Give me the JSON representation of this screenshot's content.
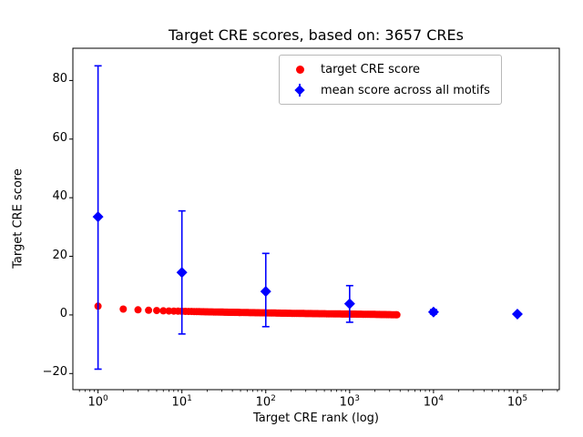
{
  "chart_data": {
    "type": "scatter",
    "title": "Target CRE scores, based on: 3657 CREs",
    "xlabel": "Target CRE rank (log)",
    "ylabel": "Target CRE score",
    "x_scale": "log10",
    "xlim_log10": [
      -0.3,
      5.5
    ],
    "ylim": [
      -25.5,
      91
    ],
    "x_tick_base": "10",
    "x_tick_exponents": [
      0,
      1,
      2,
      3,
      4,
      5
    ],
    "y_ticks": [
      -20,
      0,
      20,
      40,
      60,
      80
    ],
    "grid": false,
    "legend_position": "upper right",
    "series": [
      {
        "name": "target CRE score",
        "marker": "circle",
        "color": "#ff0000",
        "total_points": 3657,
        "points_sampled": [
          [
            1,
            3.0
          ],
          [
            2,
            2.0
          ],
          [
            3,
            1.75
          ],
          [
            4,
            1.6
          ],
          [
            5,
            1.5
          ],
          [
            7,
            1.35
          ],
          [
            10,
            1.25
          ],
          [
            20,
            1.05
          ],
          [
            50,
            0.85
          ],
          [
            100,
            0.7
          ],
          [
            200,
            0.55
          ],
          [
            500,
            0.4
          ],
          [
            1000,
            0.3
          ],
          [
            2000,
            0.18
          ],
          [
            3657,
            0.05
          ]
        ]
      },
      {
        "name": "mean score across all motifs",
        "marker": "diamond",
        "color": "#0000ff",
        "x": [
          1,
          10,
          100,
          1000,
          10000,
          100000
        ],
        "y": [
          33.5,
          14.5,
          8.0,
          3.8,
          1.0,
          0.3
        ],
        "err_low": [
          -18.5,
          -6.5,
          -4.0,
          -2.5,
          0.3,
          0.1
        ],
        "err_high": [
          85.0,
          35.5,
          21.0,
          10.0,
          1.8,
          0.6
        ]
      }
    ],
    "legend": {
      "entries": [
        {
          "label": "target CRE score",
          "marker": "circle",
          "color": "#ff0000"
        },
        {
          "label": "mean score across all motifs",
          "marker": "diamond",
          "color": "#0000ff"
        }
      ]
    }
  }
}
